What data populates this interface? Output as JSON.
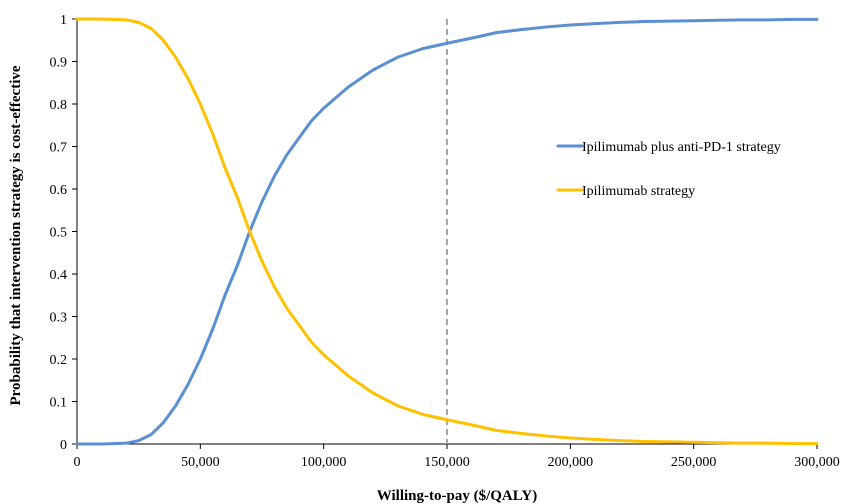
{
  "chart_data": {
    "type": "line",
    "title": "",
    "xlabel": "Willing-to-pay ($/QALY)",
    "ylabel": "Probability that intervention strategy is cost-effective",
    "xlim": [
      0,
      300000
    ],
    "ylim": [
      0,
      1
    ],
    "x_ticks": [
      0,
      50000,
      100000,
      150000,
      200000,
      250000,
      300000
    ],
    "x_tick_labels": [
      "0",
      "50,000",
      "100,000",
      "150,000",
      "200,000",
      "250,000",
      "300,000"
    ],
    "y_ticks": [
      0,
      0.1,
      0.2,
      0.3,
      0.4,
      0.5,
      0.6,
      0.7,
      0.8,
      0.9,
      1
    ],
    "y_tick_labels": [
      "0",
      "0.1",
      "0.2",
      "0.3",
      "0.4",
      "0.5",
      "0.6",
      "0.7",
      "0.8",
      "0.9",
      "1"
    ],
    "grid": false,
    "legend_position": "right",
    "reference_line": {
      "x": 150000,
      "style": "dashed",
      "color": "#a6a6a6"
    },
    "x": [
      0,
      10000,
      20000,
      25000,
      30000,
      35000,
      40000,
      45000,
      50000,
      55000,
      60000,
      65000,
      70000,
      75000,
      80000,
      85000,
      90000,
      95000,
      100000,
      110000,
      120000,
      130000,
      140000,
      150000,
      160000,
      170000,
      180000,
      190000,
      200000,
      210000,
      220000,
      230000,
      240000,
      250000,
      260000,
      270000,
      280000,
      290000,
      300000
    ],
    "series": [
      {
        "name": "Ipilimumab plus anti-PD-1 strategy",
        "color": "#5b8fd4",
        "values": [
          0.0,
          0.0,
          0.002,
          0.008,
          0.022,
          0.05,
          0.09,
          0.14,
          0.2,
          0.27,
          0.35,
          0.42,
          0.5,
          0.57,
          0.63,
          0.68,
          0.72,
          0.76,
          0.79,
          0.84,
          0.88,
          0.91,
          0.93,
          0.943,
          0.955,
          0.968,
          0.975,
          0.981,
          0.986,
          0.989,
          0.992,
          0.994,
          0.995,
          0.996,
          0.997,
          0.998,
          0.998,
          0.999,
          0.999
        ]
      },
      {
        "name": "Ipilimumab strategy",
        "color": "#ffc000",
        "values": [
          1.0,
          1.0,
          0.998,
          0.992,
          0.978,
          0.95,
          0.91,
          0.86,
          0.8,
          0.73,
          0.65,
          0.58,
          0.5,
          0.43,
          0.37,
          0.32,
          0.28,
          0.24,
          0.21,
          0.16,
          0.12,
          0.09,
          0.07,
          0.057,
          0.045,
          0.032,
          0.025,
          0.019,
          0.014,
          0.011,
          0.008,
          0.006,
          0.005,
          0.004,
          0.003,
          0.002,
          0.002,
          0.001,
          0.001
        ]
      }
    ]
  }
}
